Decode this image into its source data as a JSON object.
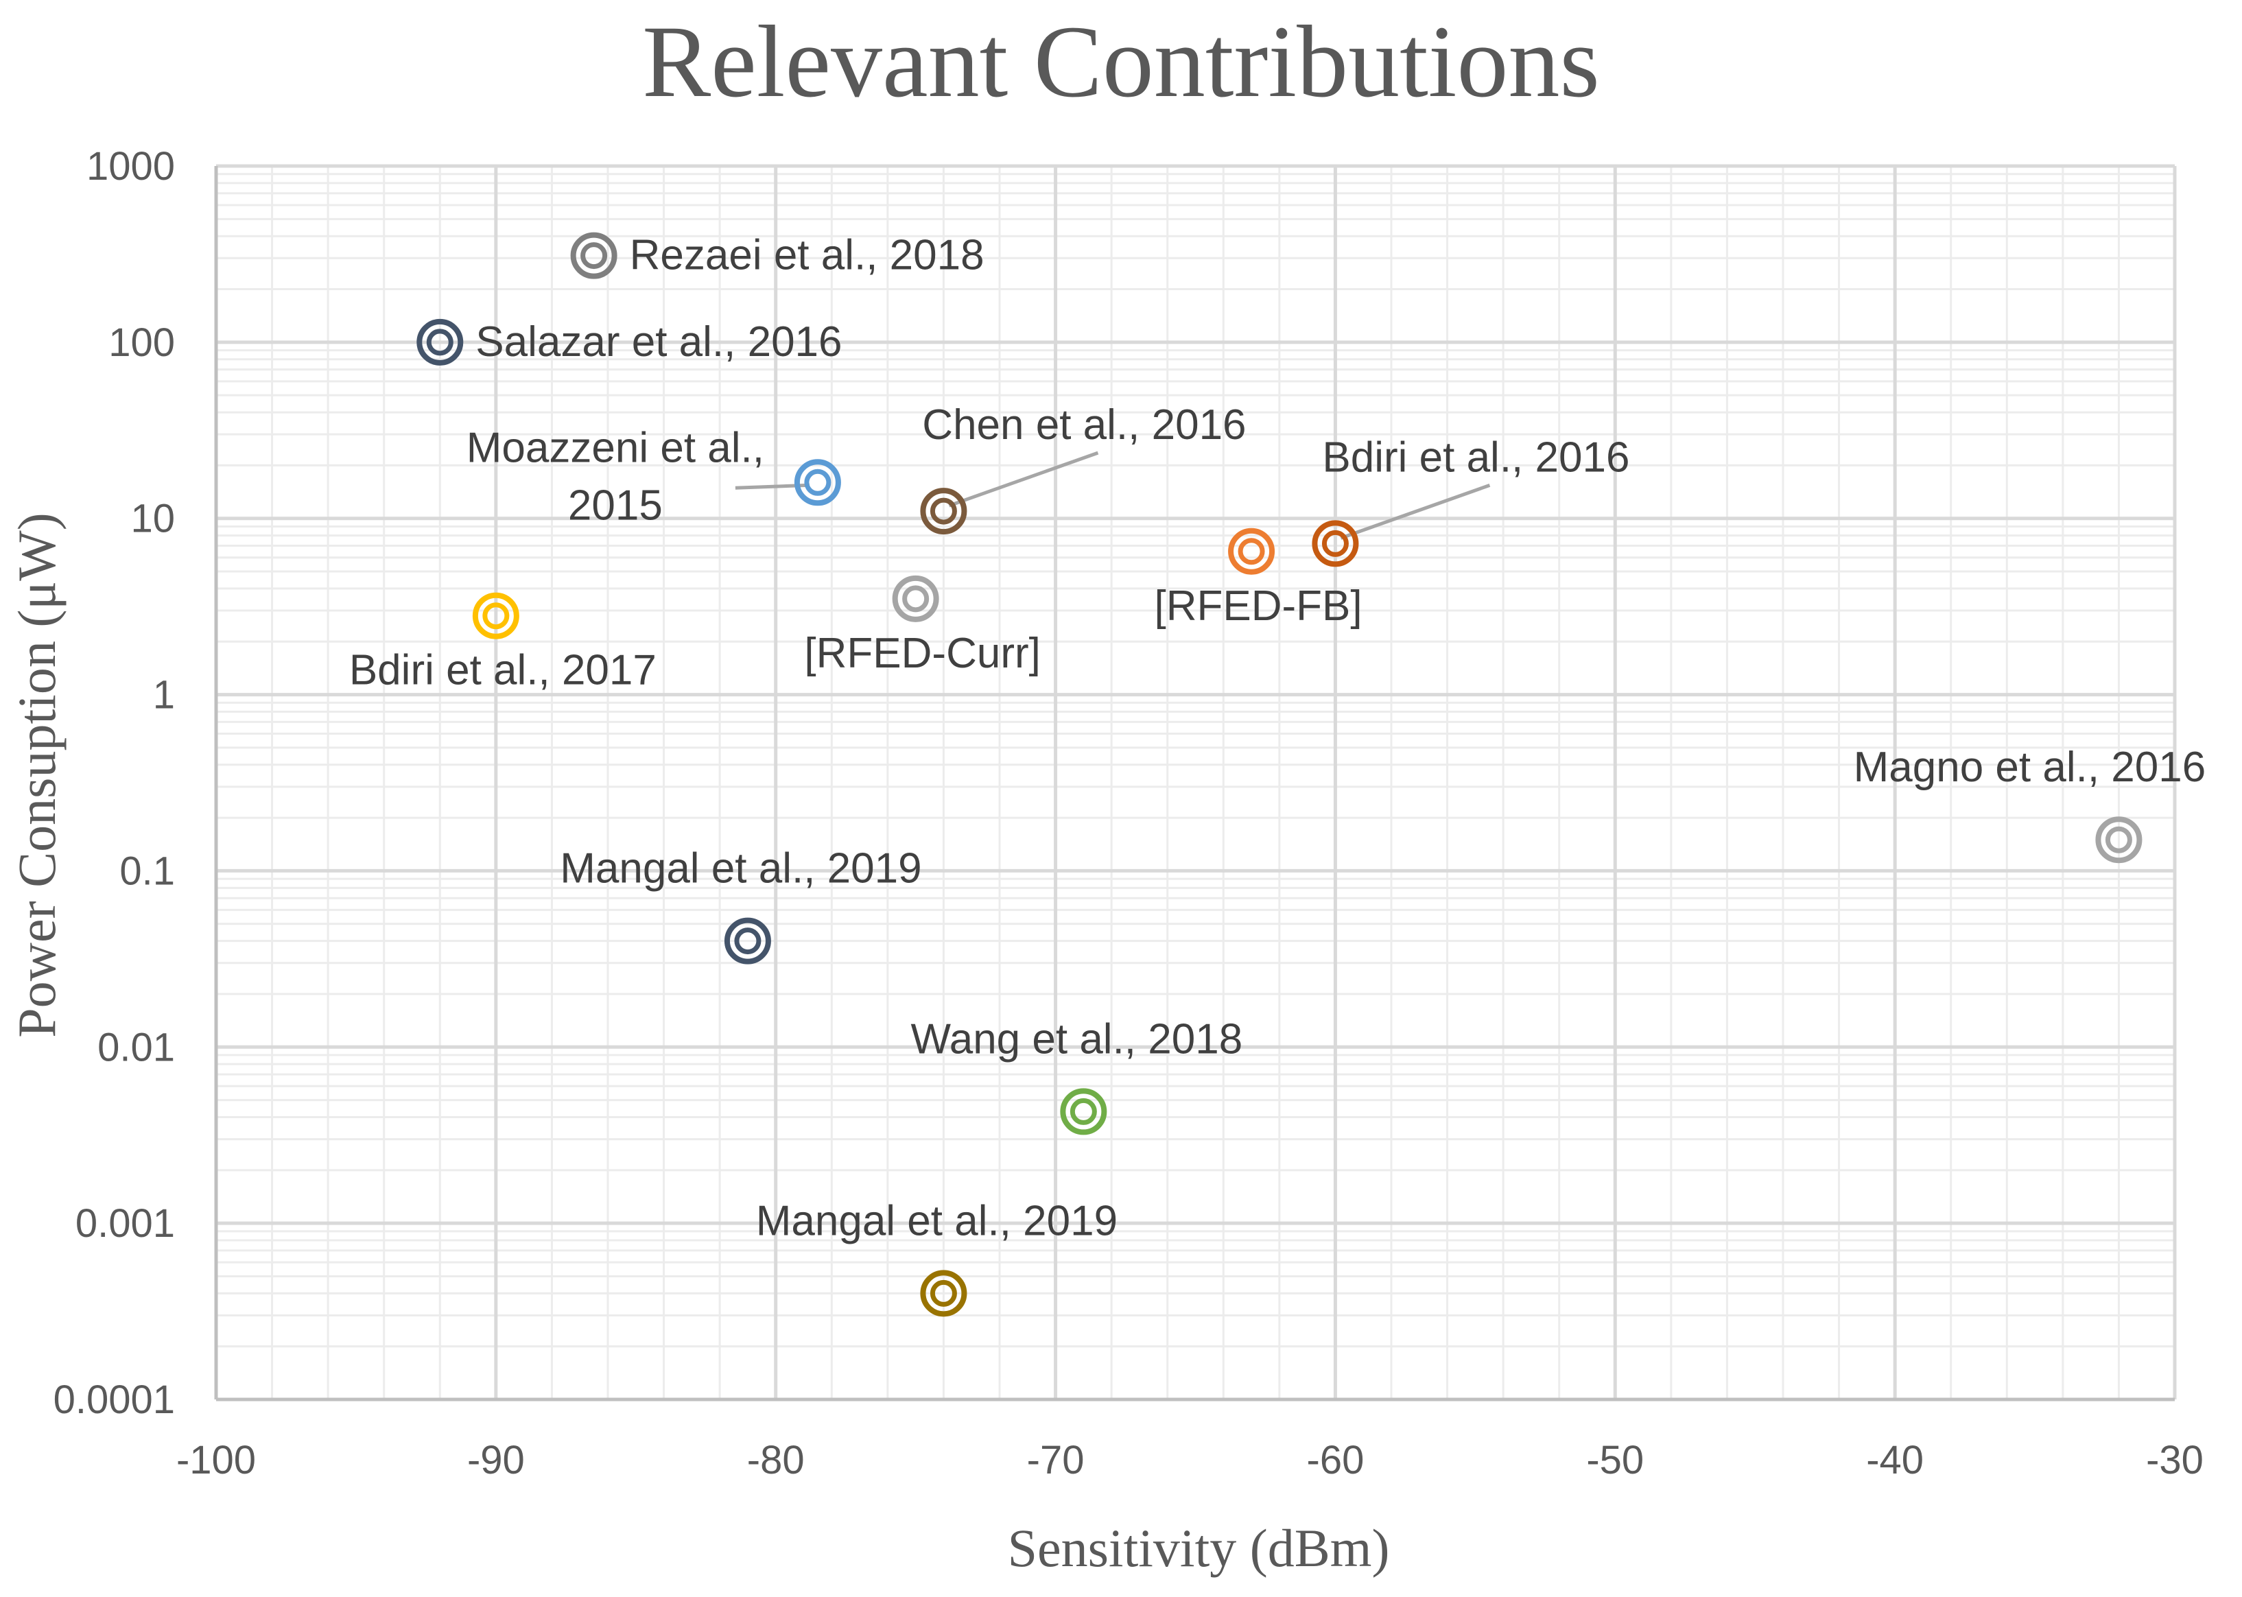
{
  "chart_data": {
    "type": "scatter",
    "title": "Relevant Contributions",
    "xlabel": "Sensitivity (dBm)",
    "ylabel": "Power Consuption (μW)",
    "xlim": [
      -100,
      -30
    ],
    "ylim": [
      0.0001,
      1000
    ],
    "yscale": "log",
    "x_ticks": [
      "-100",
      "-90",
      "-80",
      "-70",
      "-60",
      "-50",
      "-40",
      "-30"
    ],
    "x_tick_values": [
      -100,
      -90,
      -80,
      -70,
      -60,
      -50,
      -40,
      -30
    ],
    "y_ticks": [
      "0.0001",
      "0.001",
      "0.01",
      "0.1",
      "1",
      "10",
      "100",
      "1000"
    ],
    "y_tick_values": [
      0.0001,
      0.001,
      0.01,
      0.1,
      1,
      10,
      100,
      1000
    ],
    "grid": true,
    "points": [
      {
        "label": "Rezaei et al., 2018",
        "x": -86.5,
        "y": 310,
        "color": "#7f7f7f",
        "label_pos": "right"
      },
      {
        "label": "Salazar et al., 2016",
        "x": -92,
        "y": 100,
        "color": "#44546a",
        "label_pos": "right"
      },
      {
        "label": "Moazzeni et al., 2015",
        "label_lines": [
          "Moazzeni et al.,",
          "2015"
        ],
        "x": -78.5,
        "y": 16,
        "color": "#5b9bd5",
        "label_pos": "upper-left",
        "leader": true
      },
      {
        "label": "Chen et al., 2016",
        "x": -74,
        "y": 11,
        "color": "#7b5a3c",
        "label_pos": "upper-right",
        "leader": true
      },
      {
        "label": "[RFED-Curr]",
        "x": -75,
        "y": 3.5,
        "color": "#a5a5a5",
        "label_pos": "below"
      },
      {
        "label": "Bdiri et al., 2017",
        "x": -90,
        "y": 2.8,
        "color": "#ffc000",
        "label_pos": "below"
      },
      {
        "label": "[RFED-FB]",
        "x": -63,
        "y": 6.5,
        "color": "#ed7d31",
        "label_pos": "below"
      },
      {
        "label": "Bdiri et al., 2016",
        "x": -60,
        "y": 7.2,
        "color": "#c55a11",
        "label_pos": "upper-right",
        "leader": true
      },
      {
        "label": "Magno et al., 2016",
        "x": -32,
        "y": 0.15,
        "color": "#a5a5a5",
        "label_pos": "above"
      },
      {
        "label": "Mangal et al., 2019",
        "x": -81,
        "y": 0.04,
        "color": "#44546a",
        "label_pos": "above"
      },
      {
        "label": "Wang et al., 2018",
        "x": -69,
        "y": 0.0043,
        "color": "#70ad47",
        "label_pos": "above"
      },
      {
        "label": "Mangal et al., 2019",
        "x": -74,
        "y": 0.0004,
        "color": "#997300",
        "label_pos": "above"
      }
    ]
  }
}
